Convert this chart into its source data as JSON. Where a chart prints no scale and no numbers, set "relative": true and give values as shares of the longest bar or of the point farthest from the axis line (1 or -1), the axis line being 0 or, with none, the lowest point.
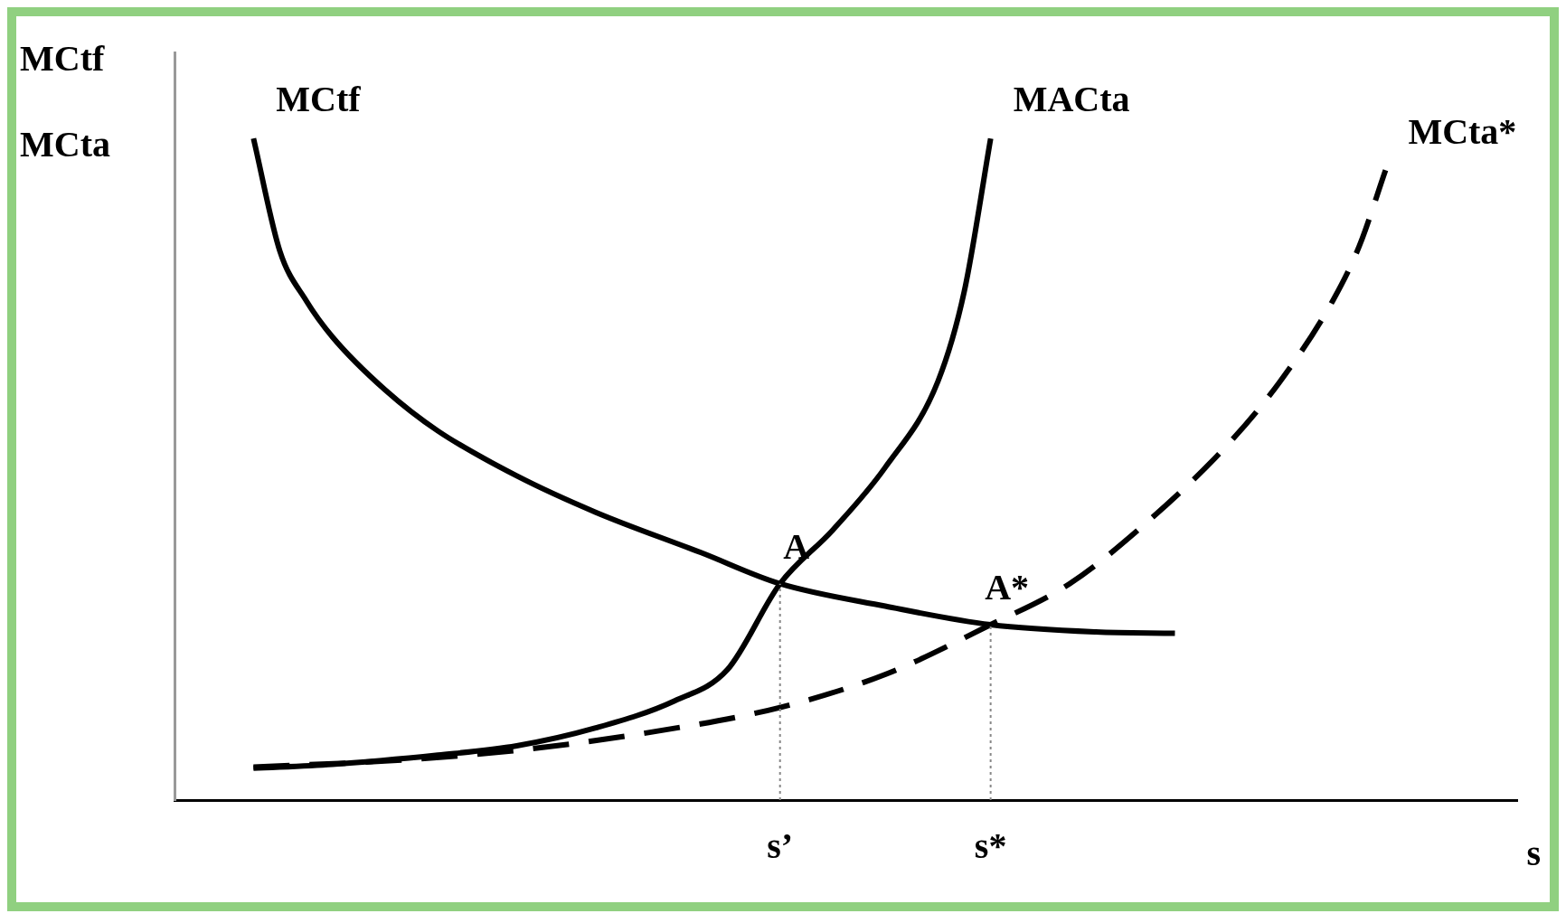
{
  "chart_data": {
    "type": "line",
    "relative": true,
    "xlabel": "s",
    "ylabel": "MCtf\nMCta",
    "categories": [
      null,
      null,
      null,
      null,
      null,
      null,
      null,
      null,
      null,
      null,
      null,
      null,
      null,
      null,
      null,
      null,
      null,
      null,
      null,
      null,
      null,
      null,
      null,
      "s’",
      null,
      null,
      null,
      null,
      null,
      null,
      null,
      "s*",
      null,
      null,
      null,
      null,
      null,
      null,
      null,
      null,
      null,
      null,
      null,
      null,
      null,
      null,
      null,
      null,
      null,
      null,
      null,
      null
    ],
    "series": [
      {
        "name": "MCtf",
        "color": "#000000",
        "values": [
          null,
          null,
          null,
          1.0,
          0.83,
          0.755,
          0.7,
          null,
          0.62,
          null,
          0.558,
          null,
          null,
          0.49,
          null,
          null,
          0.435,
          null,
          null,
          null,
          0.374,
          null,
          null,
          0.327,
          null,
          null,
          null,
          0.293,
          null,
          null,
          null,
          0.265,
          null,
          null,
          null,
          0.254,
          null,
          null,
          0.252,
          null,
          null,
          null,
          null,
          null,
          null,
          null,
          null,
          null,
          null,
          null,
          null,
          null
        ]
      },
      {
        "name": "MACta",
        "color": "#000000",
        "values": [
          null,
          null,
          null,
          0.048,
          null,
          null,
          0.054,
          null,
          null,
          null,
          0.068,
          null,
          null,
          0.082,
          null,
          null,
          0.109,
          null,
          null,
          0.15,
          null,
          0.197,
          null,
          0.327,
          null,
          0.408,
          null,
          0.503,
          null,
          0.633,
          0.769,
          1.0,
          null,
          null,
          null,
          null,
          null,
          null,
          null,
          null,
          null,
          null,
          null,
          null,
          null,
          null,
          null,
          null,
          null,
          null,
          null,
          null
        ]
      },
      {
        "name": "MCta*",
        "color": "#000000",
        "line_style": "dashed",
        "values": [
          null,
          null,
          null,
          0.05,
          null,
          null,
          null,
          null,
          0.059,
          null,
          null,
          null,
          null,
          0.075,
          null,
          null,
          null,
          null,
          0.102,
          null,
          null,
          null,
          null,
          0.14,
          null,
          null,
          null,
          0.19,
          null,
          null,
          null,
          0.265,
          null,
          null,
          0.327,
          null,
          null,
          0.422,
          null,
          null,
          0.537,
          null,
          0.633,
          null,
          0.755,
          0.837,
          0.952,
          null,
          null,
          null,
          null,
          null
        ]
      }
    ],
    "annotations": [
      {
        "text": "A",
        "x": "s’",
        "y": 0.327
      },
      {
        "text": "A*",
        "x": "s*",
        "y": 0.265
      }
    ],
    "ref_lines": [
      {
        "axis": "x",
        "value": "s’",
        "line_style": "dotted",
        "color": "#888888"
      },
      {
        "axis": "x",
        "value": "s*",
        "line_style": "dotted",
        "color": "#888888"
      }
    ],
    "grid": false,
    "legend": false,
    "marker": "none"
  }
}
